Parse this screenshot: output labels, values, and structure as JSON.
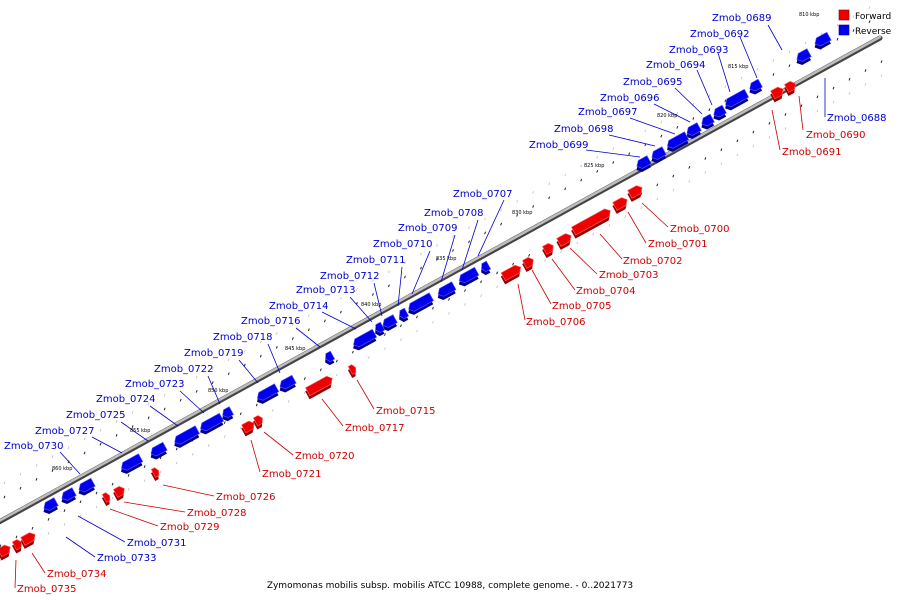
{
  "legend": {
    "forward_label": "Forward",
    "reverse_label": "Reverse",
    "forward_color": "#ee0000",
    "reverse_color": "#0000ee"
  },
  "caption": "Zymomonas mobilis subsp. mobilis ATCC 10988, complete genome. - 0..2021773",
  "ticks": [
    "810 kbp",
    "815 kbp",
    "820 kbp",
    "825 kbp",
    "830 kbp",
    "835 kbp",
    "840 kbp",
    "845 kbp",
    "850 kbp",
    "855 kbp",
    "860 kbp"
  ],
  "genes": [
    {
      "name": "Zmob_0688",
      "strand": "reverse"
    },
    {
      "name": "Zmob_0689",
      "strand": "reverse"
    },
    {
      "name": "Zmob_0690",
      "strand": "forward"
    },
    {
      "name": "Zmob_0691",
      "strand": "forward"
    },
    {
      "name": "Zmob_0692",
      "strand": "reverse"
    },
    {
      "name": "Zmob_0693",
      "strand": "reverse"
    },
    {
      "name": "Zmob_0694",
      "strand": "reverse"
    },
    {
      "name": "Zmob_0695",
      "strand": "reverse"
    },
    {
      "name": "Zmob_0696",
      "strand": "reverse"
    },
    {
      "name": "Zmob_0697",
      "strand": "reverse"
    },
    {
      "name": "Zmob_0698",
      "strand": "reverse"
    },
    {
      "name": "Zmob_0699",
      "strand": "reverse"
    },
    {
      "name": "Zmob_0700",
      "strand": "forward"
    },
    {
      "name": "Zmob_0701",
      "strand": "forward"
    },
    {
      "name": "Zmob_0702",
      "strand": "forward"
    },
    {
      "name": "Zmob_0703",
      "strand": "forward"
    },
    {
      "name": "Zmob_0704",
      "strand": "forward"
    },
    {
      "name": "Zmob_0705",
      "strand": "forward"
    },
    {
      "name": "Zmob_0706",
      "strand": "forward"
    },
    {
      "name": "Zmob_0707",
      "strand": "reverse"
    },
    {
      "name": "Zmob_0708",
      "strand": "reverse"
    },
    {
      "name": "Zmob_0709",
      "strand": "reverse"
    },
    {
      "name": "Zmob_0710",
      "strand": "reverse"
    },
    {
      "name": "Zmob_0711",
      "strand": "reverse"
    },
    {
      "name": "Zmob_0712",
      "strand": "reverse"
    },
    {
      "name": "Zmob_0713",
      "strand": "reverse"
    },
    {
      "name": "Zmob_0714",
      "strand": "reverse"
    },
    {
      "name": "Zmob_0715",
      "strand": "forward"
    },
    {
      "name": "Zmob_0716",
      "strand": "reverse"
    },
    {
      "name": "Zmob_0717",
      "strand": "forward"
    },
    {
      "name": "Zmob_0718",
      "strand": "reverse"
    },
    {
      "name": "Zmob_0719",
      "strand": "reverse"
    },
    {
      "name": "Zmob_0720",
      "strand": "forward"
    },
    {
      "name": "Zmob_0721",
      "strand": "forward"
    },
    {
      "name": "Zmob_0722",
      "strand": "reverse"
    },
    {
      "name": "Zmob_0723",
      "strand": "reverse"
    },
    {
      "name": "Zmob_0724",
      "strand": "reverse"
    },
    {
      "name": "Zmob_0725",
      "strand": "reverse"
    },
    {
      "name": "Zmob_0726",
      "strand": "forward"
    },
    {
      "name": "Zmob_0727",
      "strand": "reverse"
    },
    {
      "name": "Zmob_0728",
      "strand": "forward"
    },
    {
      "name": "Zmob_0729",
      "strand": "forward"
    },
    {
      "name": "Zmob_0730",
      "strand": "reverse"
    },
    {
      "name": "Zmob_0731",
      "strand": "reverse"
    },
    {
      "name": "Zmob_0733",
      "strand": "reverse"
    },
    {
      "name": "Zmob_0734",
      "strand": "forward"
    },
    {
      "name": "Zmob_0735",
      "strand": "forward"
    }
  ]
}
